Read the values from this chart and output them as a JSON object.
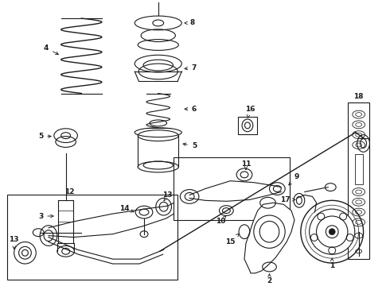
{
  "bg_color": "#ffffff",
  "line_color": "#1a1a1a",
  "label_fontsize": 6.5,
  "fig_width": 4.9,
  "fig_height": 3.6,
  "dpi": 100
}
